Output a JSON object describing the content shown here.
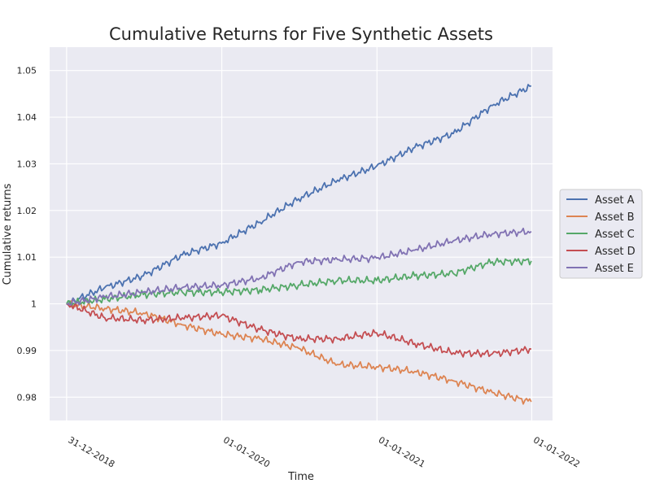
{
  "chart_data": {
    "type": "line",
    "title": "Cumulative Returns for Five Synthetic Assets",
    "xlabel": "Time",
    "ylabel": "Cumulative returns",
    "x_tick_labels": [
      "31-12-2018",
      "01-01-2020",
      "01-01-2021",
      "01-01-2022"
    ],
    "x_ticks": [
      "2018-12-31",
      "2020-01-01",
      "2021-01-01",
      "2022-01-01"
    ],
    "xlim": [
      "2018-11-21",
      "2022-02-19"
    ],
    "y_tick_labels": [
      "0.98",
      "0.99",
      "1",
      "1.01",
      "1.02",
      "1.03",
      "1.04",
      "1.05"
    ],
    "ylim": [
      0.975,
      1.055
    ],
    "grid": true,
    "legend_position": "right",
    "x": [
      "2018-12-31",
      "2019-03-31",
      "2019-06-30",
      "2019-09-30",
      "2019-12-31",
      "2020-03-31",
      "2020-06-30",
      "2020-09-30",
      "2020-12-31",
      "2021-03-31",
      "2021-06-30",
      "2021-09-30",
      "2021-12-31"
    ],
    "series": [
      {
        "name": "Asset A",
        "color": "#4c72b0",
        "values": [
          1.0,
          1.0035,
          1.006,
          1.0105,
          1.013,
          1.0175,
          1.0225,
          1.0265,
          1.0295,
          1.0335,
          1.0365,
          1.0425,
          1.0467
        ]
      },
      {
        "name": "Asset B",
        "color": "#dd8452",
        "values": [
          1.0,
          0.999,
          0.998,
          0.9955,
          0.9935,
          0.9925,
          0.9905,
          0.987,
          0.9865,
          0.9855,
          0.9835,
          0.981,
          0.979
        ]
      },
      {
        "name": "Asset C",
        "color": "#55a868",
        "values": [
          1.0,
          1.001,
          1.002,
          1.0025,
          1.0025,
          1.003,
          1.004,
          1.005,
          1.005,
          1.006,
          1.0065,
          1.009,
          1.0092
        ]
      },
      {
        "name": "Asset D",
        "color": "#c44e52",
        "values": [
          1.0,
          0.997,
          0.9965,
          0.997,
          0.9975,
          0.9945,
          0.9925,
          0.9925,
          0.9938,
          0.9915,
          0.9895,
          0.9893,
          0.9903
        ]
      },
      {
        "name": "Asset E",
        "color": "#8172b3",
        "values": [
          1.0,
          1.0015,
          1.0025,
          1.0035,
          1.004,
          1.0055,
          1.009,
          1.0095,
          1.0098,
          1.0115,
          1.0135,
          1.015,
          1.0155
        ]
      }
    ]
  }
}
